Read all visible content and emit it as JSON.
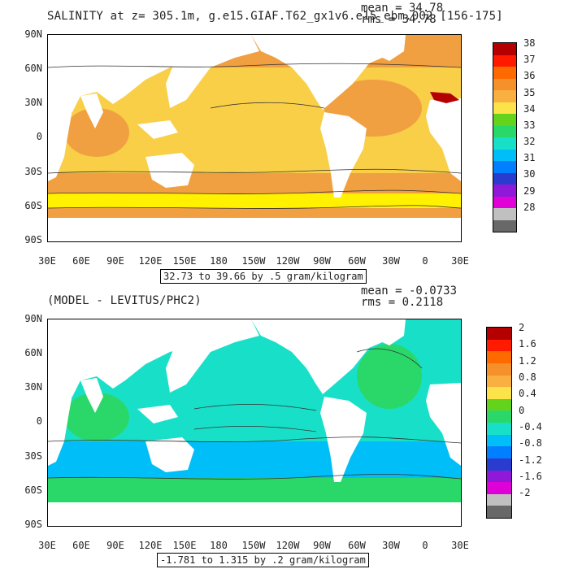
{
  "top": {
    "title": "SALINITY at z= 305.1m, g.e15.GIAF.T62_gx1v6.e15_ebm.002 [156-175]",
    "mean_label": "mean = 34.78",
    "rms_label": "rms = 34.78",
    "range_label": "32.73 to 39.66 by .5 gram/kilogram",
    "colorbar_ticks": [
      "38",
      "37",
      "36",
      "35",
      "34",
      "33",
      "32",
      "31",
      "30",
      "29",
      "28"
    ],
    "colorbar_colors": [
      "#b40000",
      "#ff1a00",
      "#ff6a00",
      "#f5902a",
      "#f9b040",
      "#fde34a",
      "#63d31c",
      "#2ad86a",
      "#18e0c8",
      "#00bff8",
      "#0080ff",
      "#2a3cd0",
      "#9018d8",
      "#e000d8",
      "#c0c0c0",
      "#686868"
    ],
    "ocean_colors": {
      "high": "#f0a040",
      "mid": "#f9cf48",
      "low": "#fff100"
    }
  },
  "bottom": {
    "title": "(MODEL - LEVITUS/PHC2)",
    "mean_label": "mean = -0.0733",
    "rms_label": "rms = 0.2118",
    "range_label": "-1.781 to 1.315 by .2 gram/kilogram",
    "colorbar_ticks": [
      "2",
      "1.6",
      "1.2",
      "0.8",
      "0.4",
      "0",
      "-0.4",
      "-0.8",
      "-1.2",
      "-1.6",
      "-2"
    ],
    "colorbar_colors": [
      "#b40000",
      "#ff1a00",
      "#ff6a00",
      "#f5902a",
      "#f9b040",
      "#fde34a",
      "#63d31c",
      "#2ad86a",
      "#18e0c8",
      "#00bff8",
      "#0080ff",
      "#2a3cd0",
      "#9018d8",
      "#e000d8",
      "#c0c0c0",
      "#686868"
    ],
    "ocean_colors": {
      "high": "#2ad86a",
      "mid": "#18e0c8",
      "low": "#00bff8"
    }
  },
  "axes": {
    "lat_labels": [
      "90N",
      "60N",
      "30N",
      "0",
      "30S",
      "60S",
      "90S"
    ],
    "lon_labels": [
      "30E",
      "60E",
      "90E",
      "120E",
      "150E",
      "180",
      "150W",
      "120W",
      "90W",
      "60W",
      "30W",
      "0",
      "30E"
    ]
  }
}
